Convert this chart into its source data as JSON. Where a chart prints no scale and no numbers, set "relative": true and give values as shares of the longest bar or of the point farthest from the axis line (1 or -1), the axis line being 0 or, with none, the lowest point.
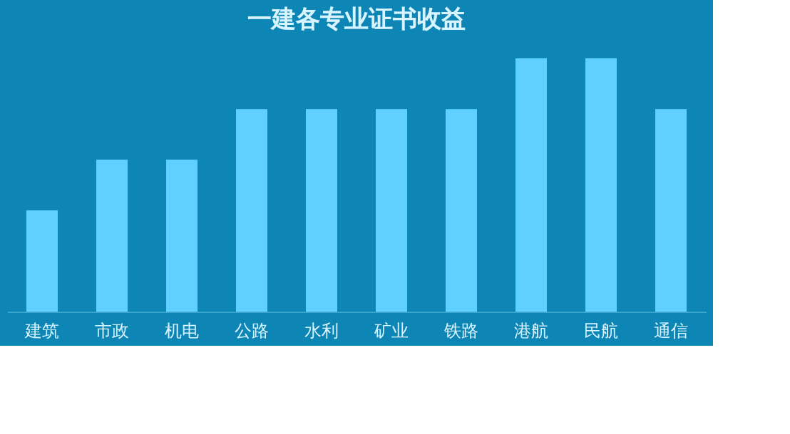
{
  "chart_data": {
    "type": "bar",
    "title": "一建各专业证书收益",
    "relative": true,
    "categories": [
      "建筑",
      "市政",
      "机电",
      "公路",
      "水利",
      "矿业",
      "铁路",
      "港航",
      "民航",
      "通信"
    ],
    "values": [
      0.4,
      0.6,
      0.6,
      0.8,
      0.8,
      0.8,
      0.8,
      1,
      1,
      0.8
    ],
    "color": "#5fd0ff",
    "grid": false
  }
}
